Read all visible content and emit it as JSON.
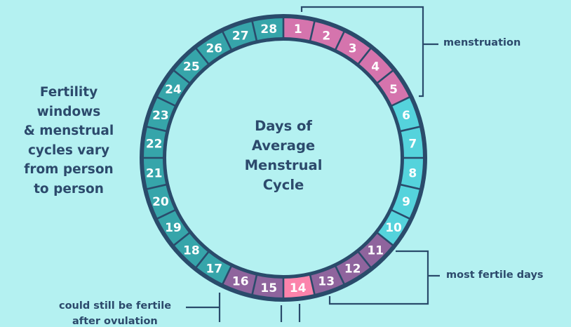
{
  "side_text": [
    "Fertility",
    "windows",
    "& menstrual",
    "cycles vary",
    "from person",
    "to person"
  ],
  "center_text": [
    "Days of",
    "Average",
    "Menstrual",
    "Cycle"
  ],
  "annotations": {
    "menstruation": "menstruation",
    "most_fertile": "most fertile days",
    "after_ovulation_line1": "could still be fertile",
    "after_ovulation_line2": "after ovulation"
  },
  "days": [
    1,
    2,
    3,
    4,
    5,
    6,
    7,
    8,
    9,
    10,
    11,
    12,
    13,
    14,
    15,
    16,
    17,
    18,
    19,
    20,
    21,
    22,
    23,
    24,
    25,
    26,
    27,
    28
  ],
  "day_phases": [
    "menstruation",
    "menstruation",
    "menstruation",
    "menstruation",
    "menstruation",
    "pre-fertile",
    "pre-fertile",
    "pre-fertile",
    "pre-fertile",
    "pre-fertile",
    "fertile",
    "fertile",
    "fertile",
    "ovulation",
    "fertile",
    "fertile",
    "luteal",
    "luteal",
    "luteal",
    "luteal",
    "luteal",
    "luteal",
    "luteal",
    "luteal",
    "luteal",
    "luteal",
    "luteal",
    "luteal"
  ],
  "colors": {
    "background": "#b4f1f1",
    "outline": "#2a4b6b",
    "menstruation": "#d574ad",
    "pre-fertile": "#55d3dc",
    "fertile": "#8f649d",
    "ovulation": "#fb83ab",
    "luteal": "#36a5aa",
    "text": "#2c4a6c"
  }
}
